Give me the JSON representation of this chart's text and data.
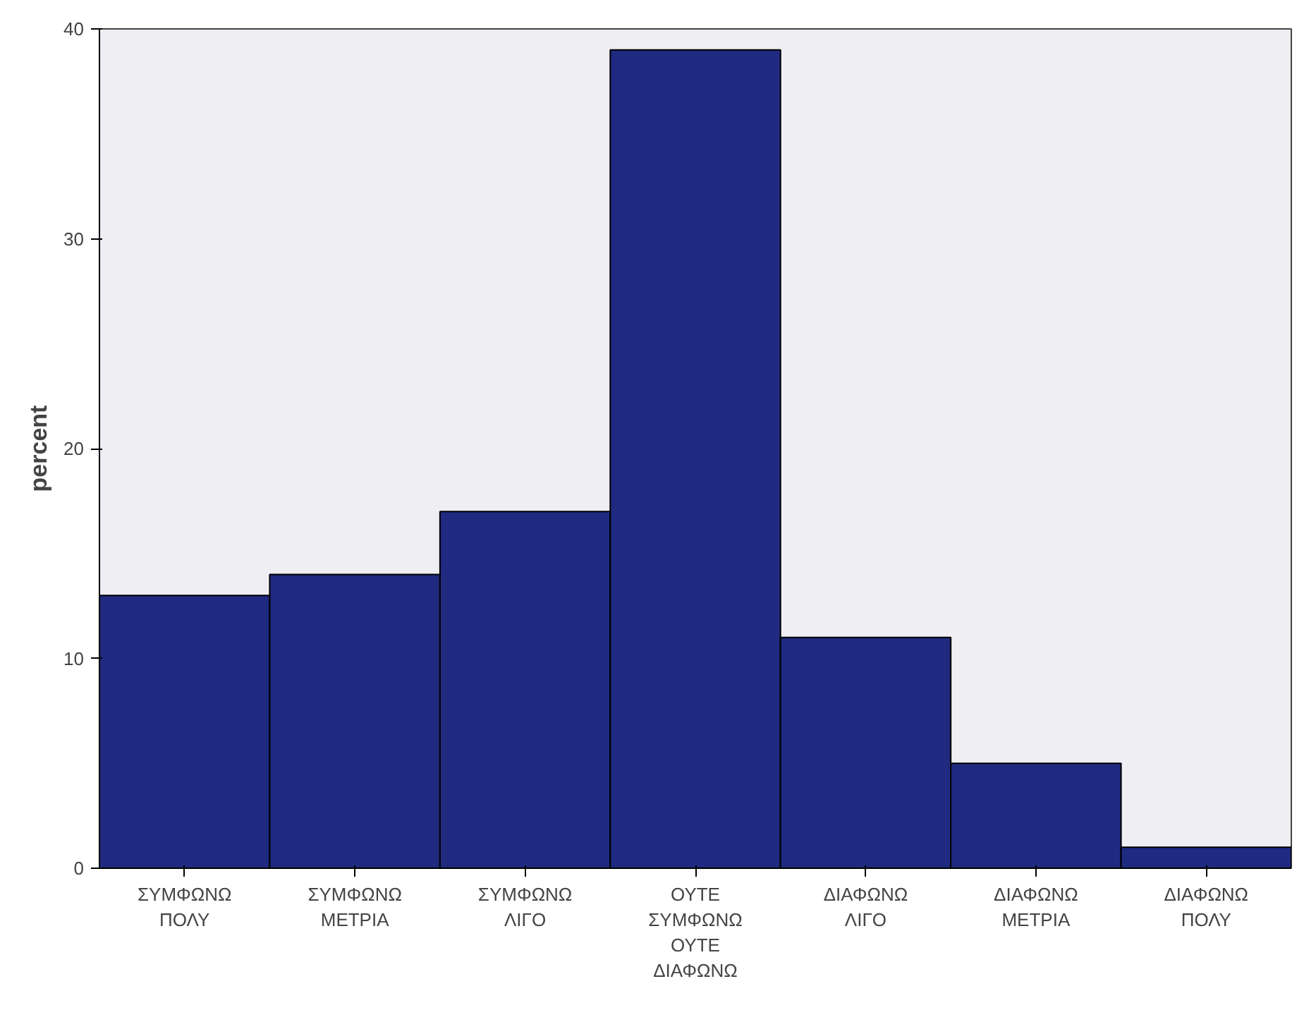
{
  "chart_data": {
    "type": "bar",
    "ylabel": "percent",
    "categories": [
      "ΣΥΜΦΩΝΩ ΠΟΛΥ",
      "ΣΥΜΦΩΝΩ ΜΕΤΡΙΑ",
      "ΣΥΜΦΩΝΩ ΛΙΓΟ",
      "ΟΥΤΕ ΣΥΜΦΩΝΩ ΟΥΤΕ ΔΙΑΦΩΝΩ",
      "ΔΙΑΦΩΝΩ ΛΙΓΟ",
      "ΔΙΑΦΩΝΩ ΜΕΤΡΙΑ",
      "ΔΙΑΦΩΝΩ ΠΟΛΥ"
    ],
    "values": [
      13,
      14,
      17,
      39,
      11,
      5,
      1
    ],
    "color": "#1f2a80",
    "ylim": [
      0,
      40
    ],
    "yticks": [
      0,
      10,
      20,
      30,
      40
    ],
    "grid": false
  }
}
